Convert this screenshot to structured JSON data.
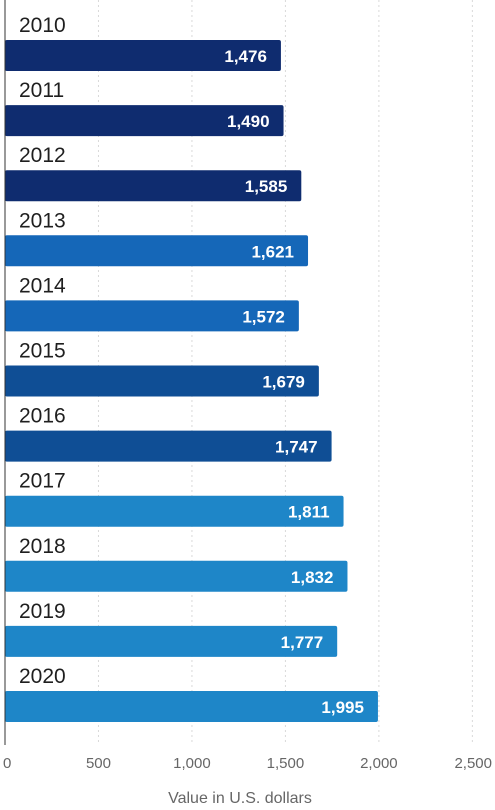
{
  "chart_data": {
    "type": "bar",
    "orientation": "horizontal",
    "categories": [
      "2010",
      "2011",
      "2012",
      "2013",
      "2014",
      "2015",
      "2016",
      "2017",
      "2018",
      "2019",
      "2020"
    ],
    "values": [
      1476,
      1490,
      1585,
      1621,
      1572,
      1679,
      1747,
      1811,
      1832,
      1777,
      1995
    ],
    "value_labels": [
      "1,476",
      "1,490",
      "1,585",
      "1,621",
      "1,572",
      "1,679",
      "1,747",
      "1,811",
      "1,832",
      "1,777",
      "1,995"
    ],
    "bar_colors": [
      "#0f2c6f",
      "#0f2c6f",
      "#0f2c6f",
      "#1567b8",
      "#1567b8",
      "#0f4e95",
      "#0f4e95",
      "#1e86c8",
      "#1e86c8",
      "#1e86c8",
      "#1e86c8"
    ],
    "xlabel": "Value in U.S. dollars",
    "ylabel": "",
    "xlim": [
      0,
      2500
    ],
    "xticks": [
      0,
      500,
      1000,
      1500,
      2000,
      2500
    ],
    "xtick_labels": [
      "0",
      "500",
      "1,000",
      "1,500",
      "2,000",
      "2,500"
    ],
    "grid": true
  }
}
